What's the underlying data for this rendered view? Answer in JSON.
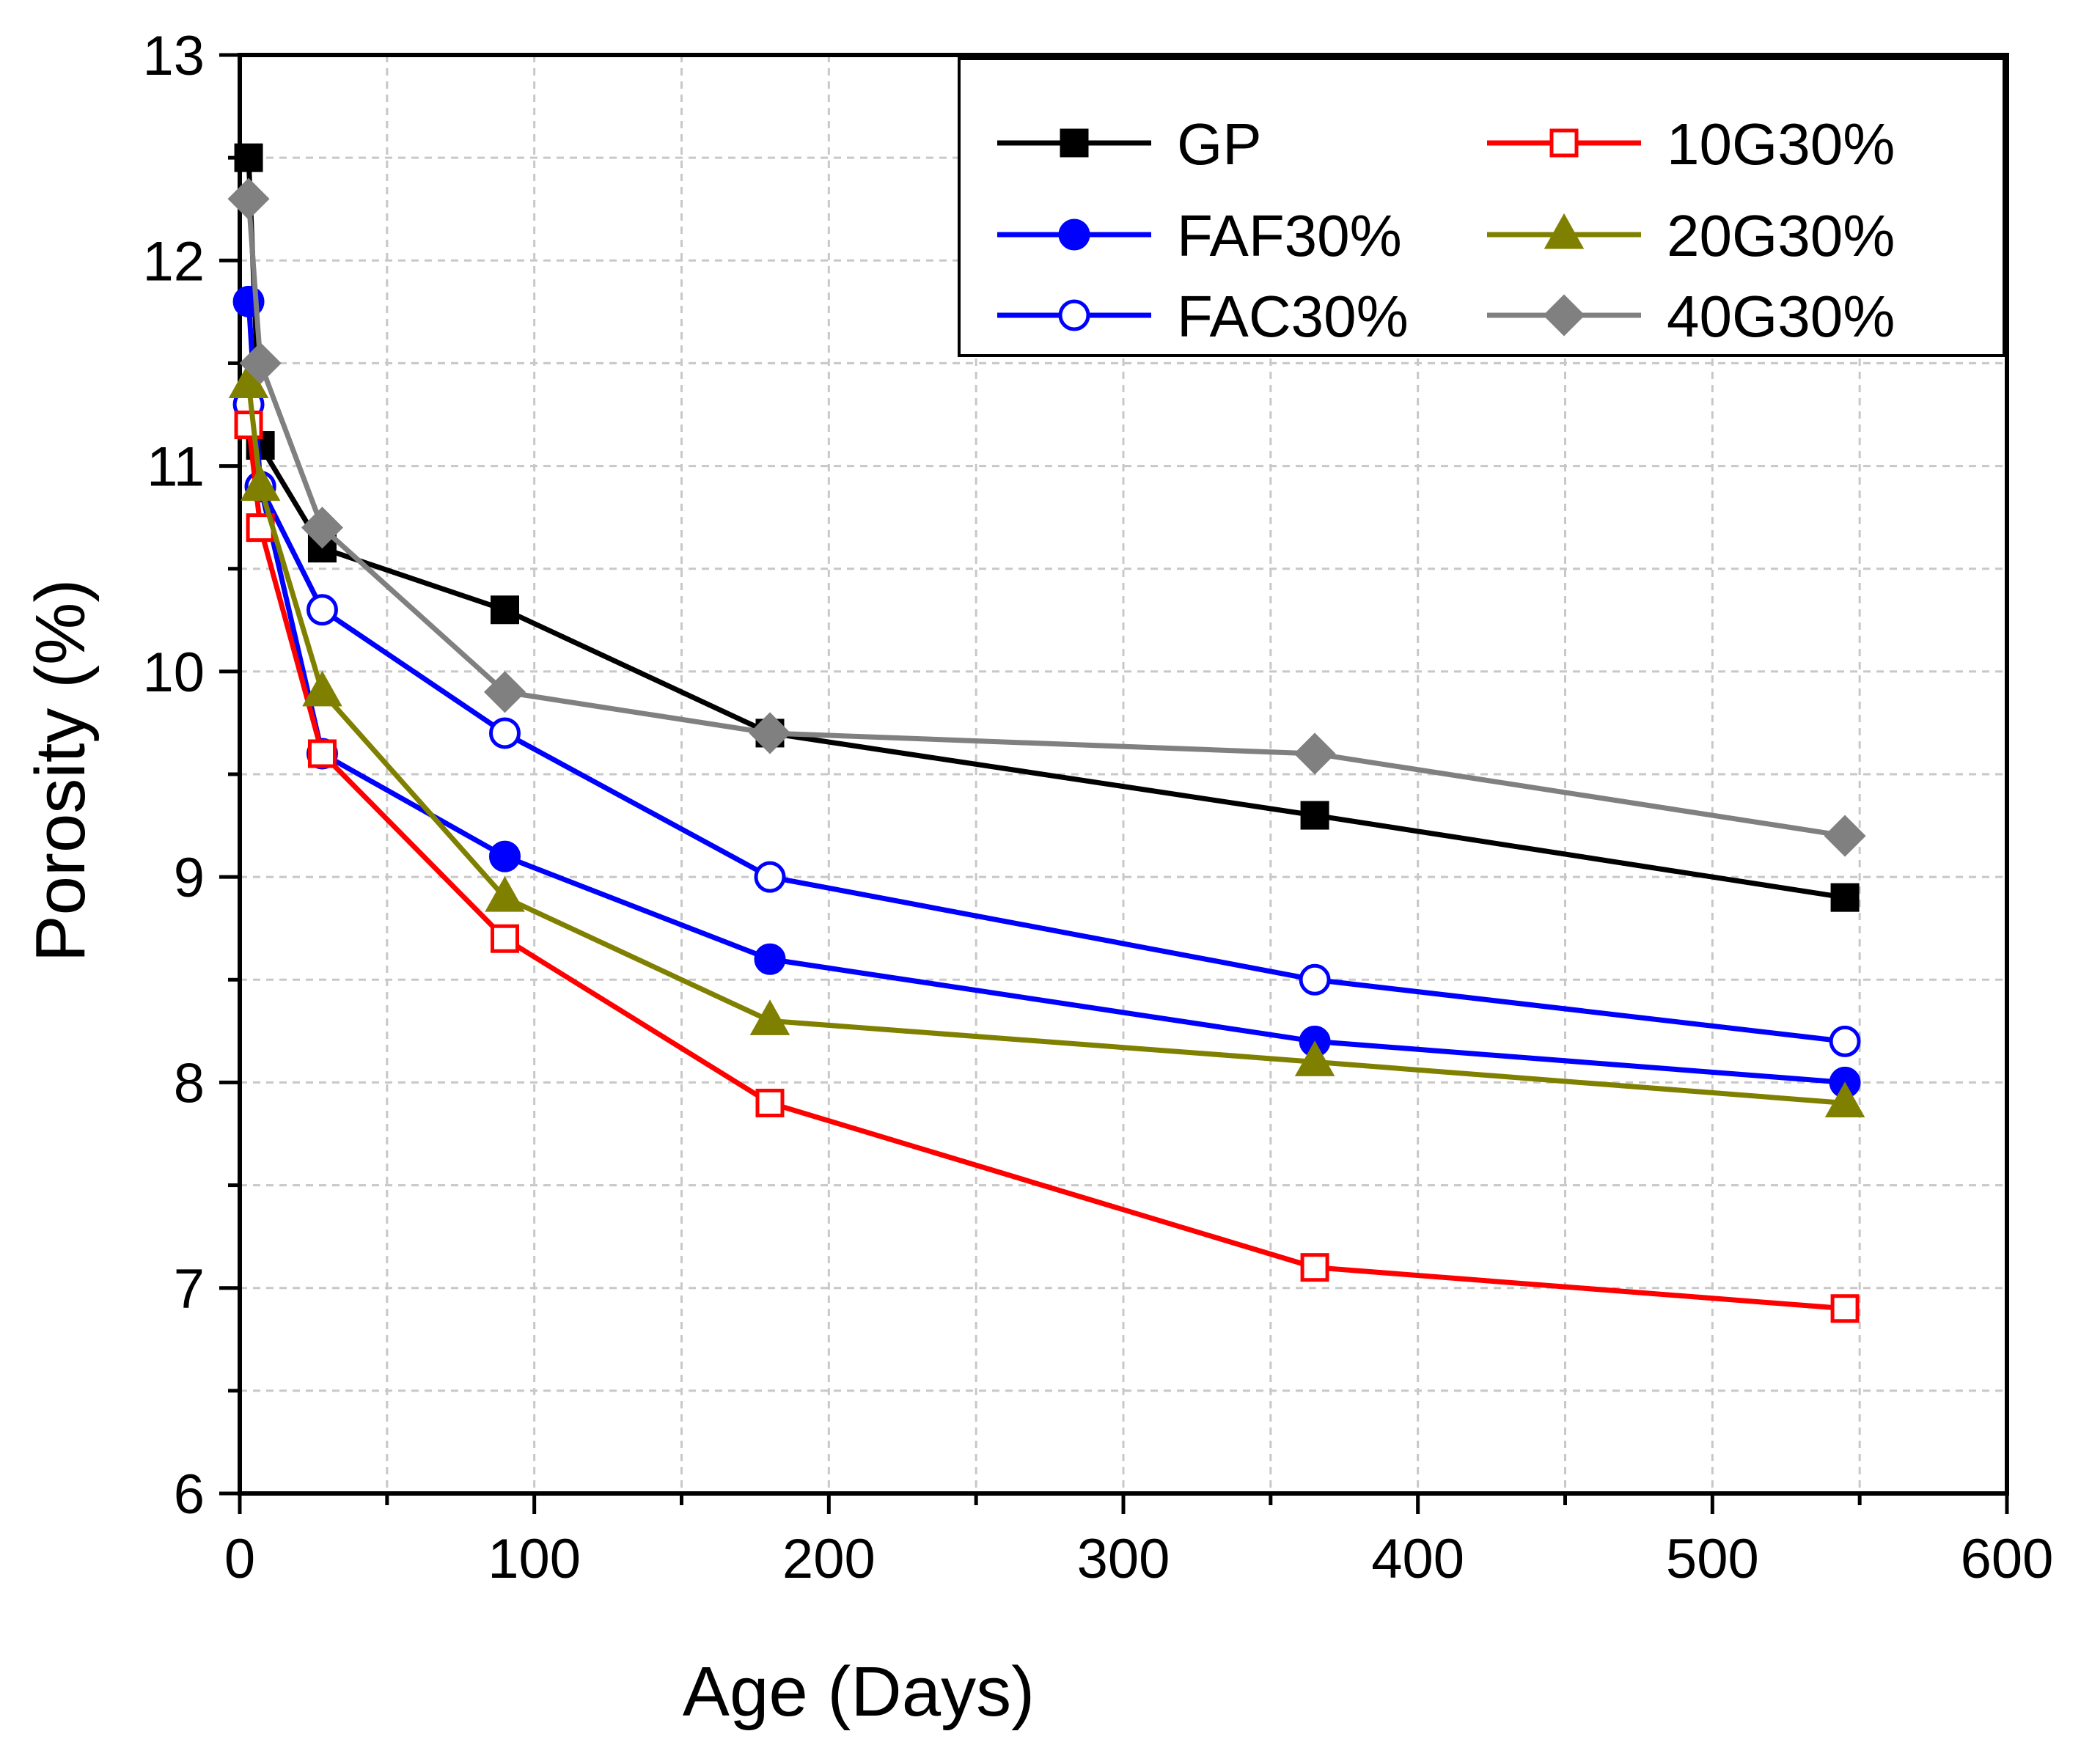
{
  "chart_data": {
    "type": "line",
    "title": "",
    "xlabel": "Age (Days)",
    "ylabel": "Porosity (%)",
    "xlim": [
      0,
      600
    ],
    "ylim": [
      6,
      13
    ],
    "xticks": [
      0,
      100,
      200,
      300,
      400,
      500,
      600
    ],
    "yticks": [
      6,
      7,
      8,
      9,
      10,
      11,
      12,
      13
    ],
    "grid": true,
    "legend": {
      "placement": "top-right",
      "columns": 2
    },
    "x": [
      3,
      7,
      28,
      90,
      180,
      365,
      545
    ],
    "series": [
      {
        "name": "GP",
        "color": "#000000",
        "marker": "square",
        "filled": true,
        "values": [
          12.5,
          11.1,
          10.6,
          10.3,
          9.7,
          9.3,
          8.9
        ]
      },
      {
        "name": "FAF30%",
        "color": "#0000ff",
        "marker": "circle",
        "filled": true,
        "values": [
          11.8,
          10.9,
          9.6,
          9.1,
          8.6,
          8.2,
          8.0
        ]
      },
      {
        "name": "FAC30%",
        "color": "#0000ff",
        "marker": "circle",
        "filled": false,
        "values": [
          11.3,
          10.9,
          10.3,
          9.7,
          9.0,
          8.5,
          8.2
        ]
      },
      {
        "name": "10G30%",
        "color": "#ff0000",
        "marker": "square",
        "filled": false,
        "values": [
          11.2,
          10.7,
          9.6,
          8.7,
          7.9,
          7.1,
          6.9
        ]
      },
      {
        "name": "20G30%",
        "color": "#808000",
        "marker": "triangle",
        "filled": true,
        "values": [
          11.4,
          10.9,
          9.9,
          8.9,
          8.3,
          8.1,
          7.9
        ]
      },
      {
        "name": "40G30%",
        "color": "#808080",
        "marker": "diamond",
        "filled": true,
        "values": [
          12.3,
          11.5,
          10.7,
          9.9,
          9.7,
          9.6,
          9.2
        ]
      }
    ]
  }
}
